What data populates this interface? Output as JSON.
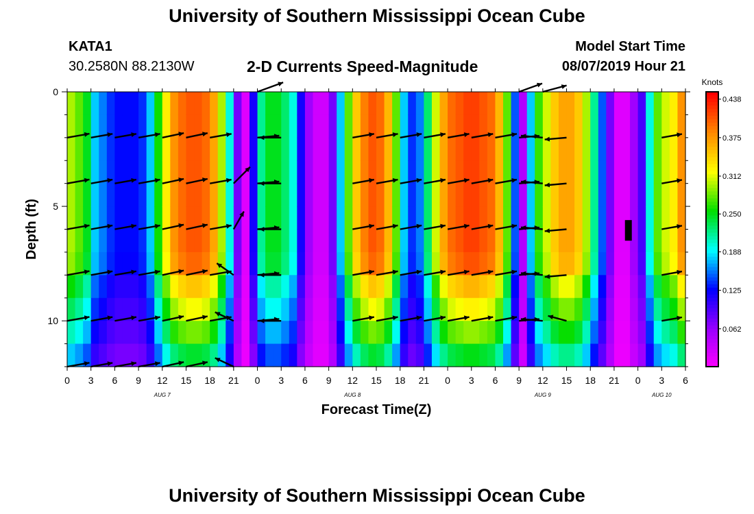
{
  "header": {
    "title": "University of Southern Mississippi Ocean Cube",
    "station": "KATA1",
    "coords": "30.2580N 88.2130W",
    "subtitle": "2-D Currents Speed-Magnitude",
    "model_label": "Model Start Time",
    "model_time": "08/07/2019 Hour 21"
  },
  "footer": {
    "title": "University of Southern Mississippi Ocean Cube"
  },
  "chart_data": {
    "type": "heatmap",
    "xlabel": "Forecast Time(Z)",
    "ylabel": "Depth (ft)",
    "x_range_hours": [
      0,
      78
    ],
    "y_range_ft": [
      0,
      12
    ],
    "y_inverted": true,
    "x_ticks": [
      "0",
      "3",
      "6",
      "9",
      "12",
      "15",
      "18",
      "21",
      "0",
      "3",
      "6",
      "9",
      "12",
      "15",
      "18",
      "21",
      "0",
      "3",
      "6",
      "9",
      "12",
      "15",
      "18",
      "21",
      "0",
      "3",
      "6"
    ],
    "y_ticks": [
      {
        "value": 0,
        "label": "0"
      },
      {
        "value": 5,
        "label": "5"
      },
      {
        "value": 10,
        "label": "10"
      }
    ],
    "date_labels": [
      {
        "hour": 12,
        "label": "AUG 7"
      },
      {
        "hour": 36,
        "label": "AUG 8"
      },
      {
        "hour": 60,
        "label": "AUG 9"
      },
      {
        "hour": 75,
        "label": "AUG 10"
      }
    ],
    "colorbar": {
      "unit": "Knots",
      "ticks": [
        "0.438",
        "0.375",
        "0.312",
        "0.250",
        "0.188",
        "0.125",
        "0.062"
      ],
      "tick_values": [
        0.438,
        0.375,
        0.312,
        0.25,
        0.188,
        0.125,
        0.062
      ],
      "min": 0,
      "max": 0.45,
      "colors": [
        "#ff00ff",
        "#9900ff",
        "#0000ff",
        "#00ffff",
        "#00dd00",
        "#ffff00",
        "#ff8800",
        "#ff0000"
      ]
    },
    "depth_levels_ft": [
      0,
      1,
      2,
      3,
      4,
      5,
      6,
      7,
      8,
      9,
      10,
      11,
      12
    ],
    "depth_factor": [
      1.0,
      1.0,
      1.0,
      1.0,
      1.0,
      1.0,
      1.0,
      0.98,
      0.86,
      0.78,
      0.7,
      0.6,
      0.52
    ],
    "surface_speed": [
      [
        0,
        0.3
      ],
      [
        1,
        0.28
      ],
      [
        2,
        0.25
      ],
      [
        3,
        0.18
      ],
      [
        4,
        0.16
      ],
      [
        5,
        0.14
      ],
      [
        6,
        0.13
      ],
      [
        7,
        0.13
      ],
      [
        8,
        0.13
      ],
      [
        9,
        0.14
      ],
      [
        10,
        0.18
      ],
      [
        11,
        0.26
      ],
      [
        12,
        0.33
      ],
      [
        13,
        0.38
      ],
      [
        14,
        0.4
      ],
      [
        15,
        0.41
      ],
      [
        16,
        0.41
      ],
      [
        17,
        0.4
      ],
      [
        18,
        0.37
      ],
      [
        19,
        0.3
      ],
      [
        20,
        0.2
      ],
      [
        21,
        0.08
      ],
      [
        22,
        0.02
      ],
      [
        23,
        0.12
      ],
      [
        24,
        0.22
      ],
      [
        25,
        0.25
      ],
      [
        26,
        0.25
      ],
      [
        27,
        0.23
      ],
      [
        28,
        0.2
      ],
      [
        29,
        0.12
      ],
      [
        30,
        0.06
      ],
      [
        31,
        0.03
      ],
      [
        32,
        0.03
      ],
      [
        33,
        0.08
      ],
      [
        34,
        0.18
      ],
      [
        35,
        0.28
      ],
      [
        36,
        0.35
      ],
      [
        37,
        0.39
      ],
      [
        38,
        0.41
      ],
      [
        39,
        0.4
      ],
      [
        40,
        0.36
      ],
      [
        41,
        0.28
      ],
      [
        42,
        0.18
      ],
      [
        43,
        0.14
      ],
      [
        44,
        0.16
      ],
      [
        45,
        0.23
      ],
      [
        46,
        0.31
      ],
      [
        47,
        0.37
      ],
      [
        48,
        0.4
      ],
      [
        49,
        0.41
      ],
      [
        50,
        0.42
      ],
      [
        51,
        0.42
      ],
      [
        52,
        0.41
      ],
      [
        53,
        0.4
      ],
      [
        54,
        0.36
      ],
      [
        55,
        0.28
      ],
      [
        56,
        0.15
      ],
      [
        57,
        0.05
      ],
      [
        58,
        0.18
      ],
      [
        59,
        0.27
      ],
      [
        60,
        0.31
      ],
      [
        61,
        0.35
      ],
      [
        62,
        0.37
      ],
      [
        63,
        0.37
      ],
      [
        64,
        0.35
      ],
      [
        65,
        0.3
      ],
      [
        66,
        0.22
      ],
      [
        67,
        0.15
      ],
      [
        68,
        0.08
      ],
      [
        69,
        0.02
      ],
      [
        70,
        0.02
      ],
      [
        71,
        0.06
      ],
      [
        72,
        0.1
      ],
      [
        73,
        0.2
      ],
      [
        74,
        0.28
      ],
      [
        75,
        0.31
      ],
      [
        76,
        0.33
      ],
      [
        77,
        0.38
      ],
      [
        78,
        0.42
      ]
    ],
    "vectors": [
      {
        "t": 0,
        "depths": [
          2,
          4,
          6,
          8,
          10,
          12
        ],
        "dir_deg": 10,
        "len": 33
      },
      {
        "t": 3,
        "depths": [
          2,
          4,
          6,
          8,
          10,
          12
        ],
        "dir_deg": 10,
        "len": 32
      },
      {
        "t": 6,
        "depths": [
          2,
          4,
          6,
          8,
          10,
          12
        ],
        "dir_deg": 10,
        "len": 32
      },
      {
        "t": 9,
        "depths": [
          2,
          4,
          6,
          8,
          10,
          12
        ],
        "dir_deg": 10,
        "len": 32
      },
      {
        "t": 12,
        "depths": [
          2,
          4,
          6,
          8,
          10,
          12
        ],
        "dir_deg": 12,
        "len": 32
      },
      {
        "t": 15,
        "depths": [
          2,
          4,
          6,
          8,
          10,
          12
        ],
        "dir_deg": 12,
        "len": 32
      },
      {
        "t": 18,
        "depths": [
          2,
          4,
          6,
          8,
          10
        ],
        "dir_deg": 10,
        "len": 32
      },
      {
        "t": 21,
        "depths": [
          4
        ],
        "dir_deg": 45,
        "len": 34
      },
      {
        "t": 21,
        "depths": [
          6
        ],
        "dir_deg": 60,
        "len": 30
      },
      {
        "t": 21,
        "depths": [
          8
        ],
        "dir_deg": 145,
        "len": 30
      },
      {
        "t": 21,
        "depths": [
          10
        ],
        "dir_deg": 155,
        "len": 30
      },
      {
        "t": 21,
        "depths": [
          12
        ],
        "dir_deg": 155,
        "len": 30
      },
      {
        "t": 24,
        "depths": [
          0
        ],
        "dir_deg": 20,
        "len": 40
      },
      {
        "t": 24,
        "depths": [
          2,
          4,
          6,
          8,
          10
        ],
        "dir_deg": 5,
        "len": 32
      },
      {
        "t": 27,
        "depths": [
          2,
          4,
          6,
          8,
          10
        ],
        "dir_deg": 180,
        "len": 32
      },
      {
        "t": 36,
        "depths": [
          2,
          4,
          6,
          8,
          10
        ],
        "dir_deg": 10,
        "len": 32
      },
      {
        "t": 39,
        "depths": [
          2,
          4,
          6,
          8,
          10
        ],
        "dir_deg": 10,
        "len": 32
      },
      {
        "t": 42,
        "depths": [
          2,
          4,
          6,
          8,
          10
        ],
        "dir_deg": 10,
        "len": 32
      },
      {
        "t": 45,
        "depths": [
          2,
          4,
          6,
          8,
          10
        ],
        "dir_deg": 10,
        "len": 32
      },
      {
        "t": 48,
        "depths": [
          2,
          4,
          6,
          8,
          10
        ],
        "dir_deg": 10,
        "len": 32
      },
      {
        "t": 51,
        "depths": [
          2,
          4,
          6,
          8,
          10
        ],
        "dir_deg": 10,
        "len": 32
      },
      {
        "t": 54,
        "depths": [
          2,
          4,
          6,
          8,
          10
        ],
        "dir_deg": 10,
        "len": 32
      },
      {
        "t": 57,
        "depths": [
          0
        ],
        "dir_deg": 20,
        "len": 36
      },
      {
        "t": 57,
        "depths": [
          2,
          4,
          6,
          8,
          10
        ],
        "dir_deg": 5,
        "len": 30
      },
      {
        "t": 60,
        "depths": [
          0
        ],
        "dir_deg": 15,
        "len": 36
      },
      {
        "t": 60,
        "depths": [
          2,
          4,
          6,
          8,
          10
        ],
        "dir_deg": 175,
        "len": 32
      },
      {
        "t": 63,
        "depths": [
          2,
          4,
          6,
          8
        ],
        "dir_deg": 185,
        "len": 32
      },
      {
        "t": 63,
        "depths": [
          10
        ],
        "dir_deg": 165,
        "len": 28
      },
      {
        "t": 75,
        "depths": [
          2,
          4,
          6,
          8,
          10
        ],
        "dir_deg": 10,
        "len": 30
      }
    ],
    "marker": {
      "t": 70.8,
      "depth_from": 5.6,
      "depth_to": 6.5
    }
  }
}
